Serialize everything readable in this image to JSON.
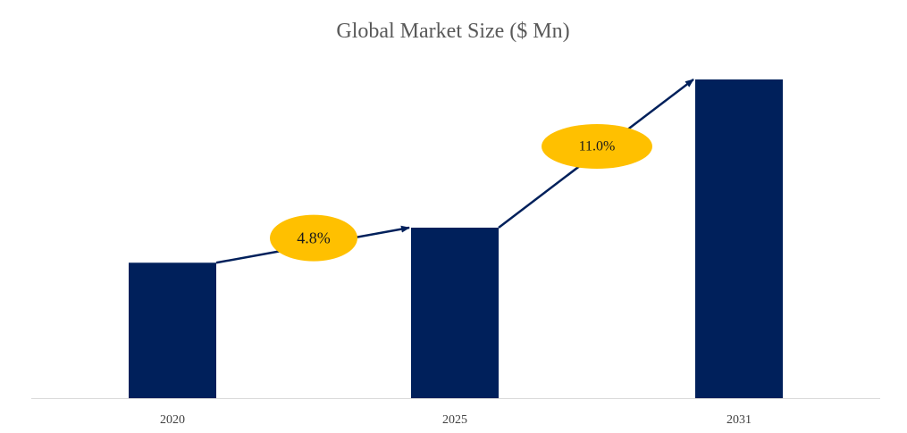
{
  "chart_data": {
    "type": "bar",
    "title": "Global Market Size ($ Mn)",
    "xlabel": "",
    "ylabel": "",
    "categories": [
      "2020",
      "2025",
      "2031"
    ],
    "values": [
      42.5,
      53.5,
      100
    ],
    "ylim": [
      0,
      100
    ],
    "grid": false,
    "legend": "none",
    "annotations": [
      {
        "from": "2020",
        "to": "2025",
        "label": "4.8%"
      },
      {
        "from": "2025",
        "to": "2031",
        "label": "11.0%"
      }
    ]
  },
  "colors": {
    "bar": "#00205B",
    "arrow": "#00205B",
    "badge": "#FFC000",
    "axis": "#D9D9D9",
    "title": "#595959"
  }
}
